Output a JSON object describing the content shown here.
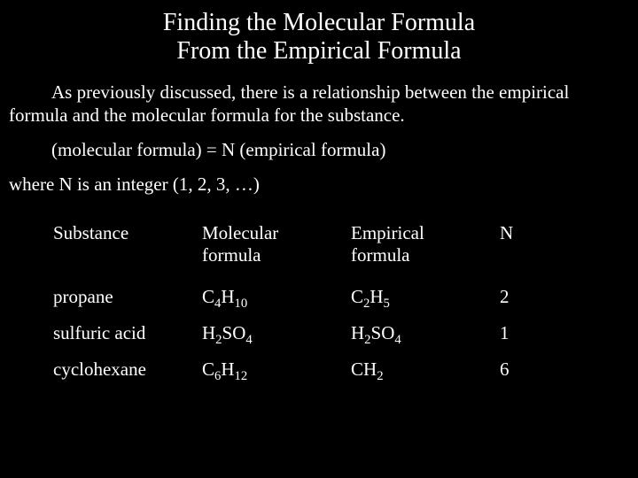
{
  "colors": {
    "background": "#000000",
    "text": "#ffffff"
  },
  "typography": {
    "family": "Times New Roman",
    "title_fontsize": 28,
    "body_fontsize": 21
  },
  "title_line1": "Finding the Molecular Formula",
  "title_line2": "From the Empirical Formula",
  "paragraph1": "As previously discussed, there is a relationship between the empirical formula and the molecular formula for the substance.",
  "equation": "(molecular formula) = N (empirical formula)",
  "note": "where N is an integer (1, 2, 3, …)",
  "table": {
    "headers": {
      "substance": "Substance",
      "molecular": "Molecular formula",
      "empirical": "Empirical formula",
      "n": "N"
    },
    "rows": [
      {
        "substance": "propane",
        "molecular": [
          {
            "t": "C"
          },
          {
            "s": "4"
          },
          {
            "t": "H"
          },
          {
            "s": "10"
          }
        ],
        "empirical": [
          {
            "t": "C"
          },
          {
            "s": "2"
          },
          {
            "t": "H"
          },
          {
            "s": "5"
          }
        ],
        "n": "2"
      },
      {
        "substance": "sulfuric acid",
        "molecular": [
          {
            "t": "H"
          },
          {
            "s": "2"
          },
          {
            "t": "SO"
          },
          {
            "s": "4"
          }
        ],
        "empirical": [
          {
            "t": "H"
          },
          {
            "s": "2"
          },
          {
            "t": "SO"
          },
          {
            "s": "4"
          }
        ],
        "n": "1"
      },
      {
        "substance": "cyclohexane",
        "molecular": [
          {
            "t": "C"
          },
          {
            "s": "6"
          },
          {
            "t": "H"
          },
          {
            "s": "12"
          }
        ],
        "empirical": [
          {
            "t": "CH"
          },
          {
            "s": "2"
          }
        ],
        "n": "6"
      }
    ]
  }
}
